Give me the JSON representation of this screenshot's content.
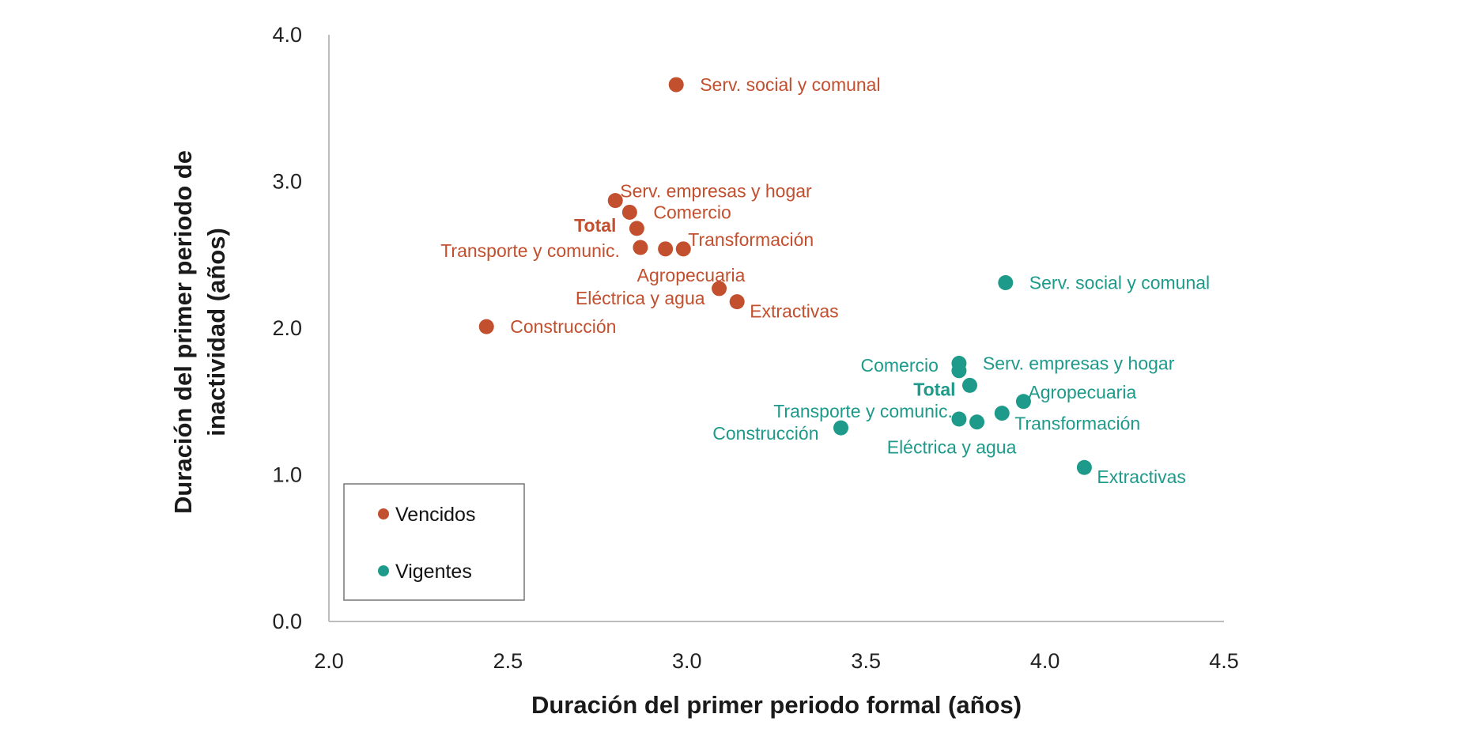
{
  "chart_data": {
    "type": "scatter",
    "title": "",
    "xlabel": "Duración del primer periodo formal (años)",
    "ylabel_lines": [
      "Duración del primer periodo de",
      "inactividad (años)"
    ],
    "xlim": [
      2.0,
      4.5
    ],
    "ylim": [
      0.0,
      4.0
    ],
    "xticks": [
      "2.0",
      "2.5",
      "3.0",
      "3.5",
      "4.0",
      "4.5"
    ],
    "yticks": [
      "0.0",
      "1.0",
      "2.0",
      "3.0",
      "4.0"
    ],
    "grid": false,
    "legend_placement": "bottom-left",
    "series": [
      {
        "name": "Vencidos",
        "color": "#C24F2E",
        "points": [
          {
            "label": "Serv. social y comunal",
            "x": 2.97,
            "y": 3.66,
            "label_pos": "right"
          },
          {
            "label": "Serv. empresas y hogar",
            "x": 2.8,
            "y": 2.87,
            "label_pos": "upper-right"
          },
          {
            "label": "Comercio",
            "x": 2.84,
            "y": 2.79,
            "label_pos": "right"
          },
          {
            "label": "Total",
            "x": 2.86,
            "y": 2.68,
            "label_pos": "left",
            "bold": true
          },
          {
            "label": "Transporte y comunic.",
            "x": 2.87,
            "y": 2.55,
            "label_pos": "left"
          },
          {
            "label": "Agropecuaria",
            "x": 2.94,
            "y": 2.54,
            "label_pos": "below"
          },
          {
            "label": "Transformación",
            "x": 2.99,
            "y": 2.54,
            "label_pos": "upper-right"
          },
          {
            "label": "Eléctrica y agua",
            "x": 3.09,
            "y": 2.27,
            "label_pos": "lower-left"
          },
          {
            "label": "Extractivas",
            "x": 3.14,
            "y": 2.18,
            "label_pos": "lower-right"
          },
          {
            "label": "Construcción",
            "x": 2.44,
            "y": 2.01,
            "label_pos": "right"
          }
        ]
      },
      {
        "name": "Vigentes",
        "color": "#1E9A8A",
        "points": [
          {
            "label": "Serv. social y comunal",
            "x": 3.89,
            "y": 2.31,
            "label_pos": "right"
          },
          {
            "label": "Serv. empresas y hogar",
            "x": 3.76,
            "y": 1.76,
            "label_pos": "right"
          },
          {
            "label": "Comercio",
            "x": 3.76,
            "y": 1.71,
            "label_pos": "left"
          },
          {
            "label": "Total",
            "x": 3.79,
            "y": 1.61,
            "label_pos": "lower-left",
            "bold": true
          },
          {
            "label": "Agropecuaria",
            "x": 3.94,
            "y": 1.5,
            "label_pos": "upper-right"
          },
          {
            "label": "Transformación",
            "x": 3.88,
            "y": 1.42,
            "label_pos": "lower-right"
          },
          {
            "label": "Transporte y comunic.",
            "x": 3.76,
            "y": 1.38,
            "label_pos": "upper-left"
          },
          {
            "label": "Eléctrica y agua",
            "x": 3.81,
            "y": 1.36,
            "label_pos": "below"
          },
          {
            "label": "Construcción",
            "x": 3.43,
            "y": 1.32,
            "label_pos": "left"
          },
          {
            "label": "Extractivas",
            "x": 4.11,
            "y": 1.05,
            "label_pos": "lower-right"
          }
        ]
      }
    ]
  }
}
